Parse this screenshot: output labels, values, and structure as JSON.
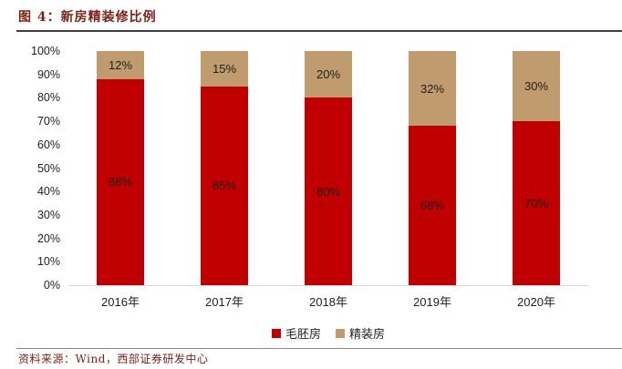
{
  "header": {
    "title": "图 4：新房精装修比例"
  },
  "footer": {
    "source": "资料来源：Wind，西部证券研发中心"
  },
  "chart_data": {
    "type": "bar",
    "stacked": true,
    "title": "新房精装修比例",
    "categories": [
      "2016年",
      "2017年",
      "2018年",
      "2019年",
      "2020年"
    ],
    "series": [
      {
        "name": "毛胚房",
        "color": "#C00000",
        "values": [
          88,
          85,
          80,
          68,
          70
        ],
        "labels": [
          "88%",
          "85%",
          "80%",
          "68%",
          "70%"
        ]
      },
      {
        "name": "精装房",
        "color": "#BF9B6E",
        "values": [
          12,
          15,
          20,
          32,
          30
        ],
        "labels": [
          "12%",
          "15%",
          "20%",
          "32%",
          "30%"
        ]
      }
    ],
    "ylim": [
      0,
      100
    ],
    "yticks": [
      "100%",
      "90%",
      "80%",
      "70%",
      "60%",
      "50%",
      "40%",
      "30%",
      "20%",
      "10%",
      "0%"
    ],
    "grid": false,
    "legend_position": "bottom"
  },
  "colors": {
    "bar_red": "#C00000",
    "bar_tan": "#BF9B6E",
    "caption_maroon": "#7C1F17",
    "axis_line": "#D9D9D9"
  }
}
